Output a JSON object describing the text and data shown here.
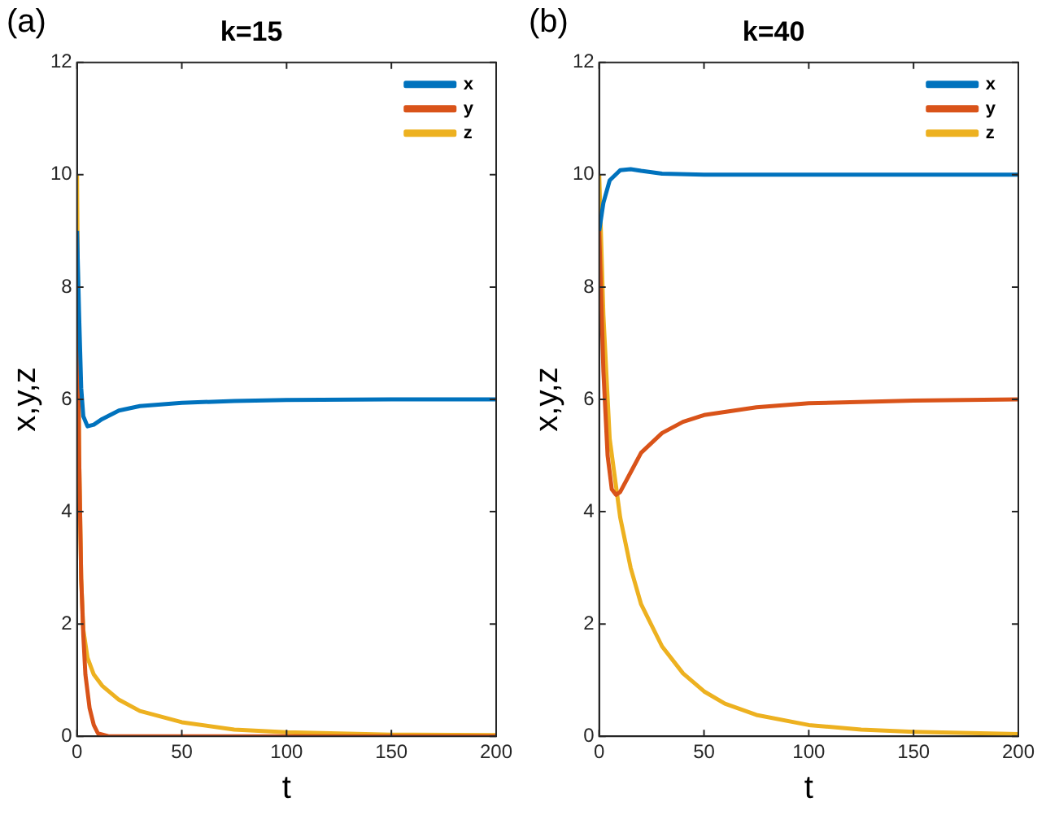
{
  "chart_data": [
    {
      "type": "line",
      "title": "k=15",
      "xlabel": "t",
      "ylabel": "x,y,z",
      "annotations": [
        "(a)"
      ],
      "xlim": [
        0,
        200
      ],
      "xticks": [
        0,
        50,
        100,
        150,
        200
      ],
      "ylim": [
        0,
        12
      ],
      "yticks": [
        0,
        2,
        4,
        6,
        8,
        10,
        12
      ],
      "grid": false,
      "legend": "top right",
      "marker": "none",
      "line_style": "solid",
      "series": [
        {
          "name": "x",
          "color": "#0072bd",
          "x": [
            0,
            1,
            2,
            3,
            5,
            8,
            12,
            20,
            30,
            50,
            75,
            100,
            150,
            200
          ],
          "values": [
            9,
            7.5,
            6.2,
            5.7,
            5.52,
            5.55,
            5.65,
            5.8,
            5.88,
            5.94,
            5.97,
            5.99,
            6,
            6
          ]
        },
        {
          "name": "y",
          "color": "#d95319",
          "x": [
            0,
            1,
            2,
            3,
            4,
            6,
            8,
            10,
            15,
            200
          ],
          "values": [
            9,
            5,
            2.8,
            1.8,
            1.1,
            0.5,
            0.2,
            0.05,
            0,
            0
          ]
        },
        {
          "name": "z",
          "color": "#edb120",
          "x": [
            0,
            1,
            2,
            3,
            5,
            8,
            12,
            20,
            30,
            50,
            75,
            100,
            150,
            200
          ],
          "values": [
            10,
            5,
            2.8,
            1.9,
            1.4,
            1.1,
            0.9,
            0.65,
            0.45,
            0.25,
            0.12,
            0.07,
            0.03,
            0.02
          ]
        }
      ]
    },
    {
      "type": "line",
      "title": "k=40",
      "xlabel": "t",
      "ylabel": "x,y,z",
      "annotations": [
        "(b)"
      ],
      "xlim": [
        0,
        200
      ],
      "xticks": [
        0,
        50,
        100,
        150,
        200
      ],
      "ylim": [
        0,
        12
      ],
      "yticks": [
        0,
        2,
        4,
        6,
        8,
        10,
        12
      ],
      "grid": false,
      "legend": "top right",
      "marker": "none",
      "line_style": "solid",
      "series": [
        {
          "name": "x",
          "color": "#0072bd",
          "x": [
            0,
            2,
            5,
            10,
            15,
            20,
            30,
            50,
            200
          ],
          "values": [
            9,
            9.5,
            9.9,
            10.08,
            10.1,
            10.07,
            10.02,
            10,
            10
          ]
        },
        {
          "name": "y",
          "color": "#d95319",
          "x": [
            0,
            2,
            4,
            6,
            8,
            10,
            15,
            20,
            30,
            40,
            50,
            75,
            100,
            150,
            200
          ],
          "values": [
            9,
            6.5,
            5,
            4.4,
            4.3,
            4.35,
            4.7,
            5.05,
            5.4,
            5.6,
            5.72,
            5.86,
            5.93,
            5.98,
            6
          ]
        },
        {
          "name": "z",
          "color": "#edb120",
          "x": [
            0,
            2,
            5,
            10,
            15,
            20,
            30,
            40,
            50,
            60,
            75,
            100,
            125,
            150,
            200
          ],
          "values": [
            10,
            7.5,
            5.3,
            3.9,
            3.0,
            2.35,
            1.6,
            1.12,
            0.8,
            0.58,
            0.38,
            0.2,
            0.12,
            0.08,
            0.04
          ]
        }
      ]
    }
  ]
}
